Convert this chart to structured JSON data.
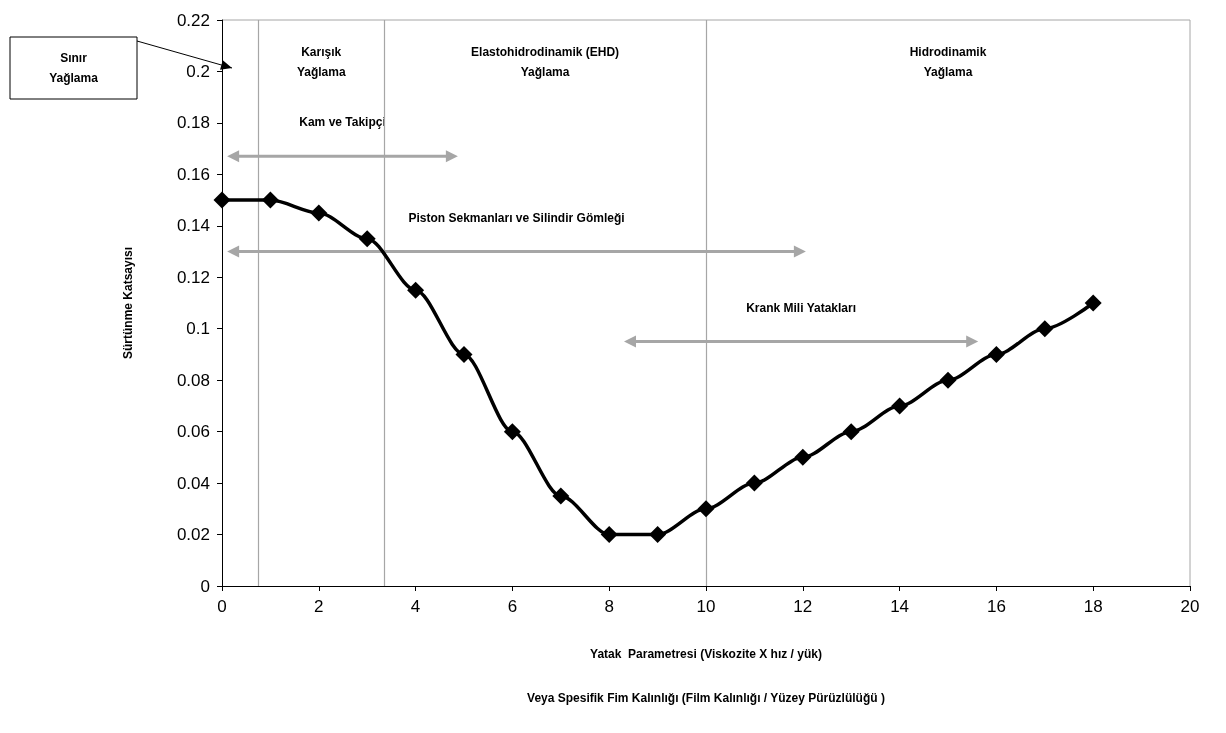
{
  "chart_data": {
    "type": "line",
    "xlabel": "Yatak  Parametresi (Viskozite X hız / yük)\nVeya Spesifik Fim Kalınlığı (Film Kalınlığı / Yüzey Pürüzlülüğü )",
    "ylabel": "Sürtünme Katsayısı",
    "x": [
      0,
      1,
      2,
      3,
      4,
      5,
      6,
      7,
      8,
      9,
      10,
      11,
      12,
      13,
      14,
      15,
      16,
      17,
      18
    ],
    "series": [
      {
        "color": "#000000",
        "values": [
          0.15,
          0.15,
          0.145,
          0.135,
          0.115,
          0.09,
          0.06,
          0.035,
          0.02,
          0.02,
          0.03,
          0.04,
          0.05,
          0.06,
          0.07,
          0.08,
          0.09,
          0.1,
          0.11
        ]
      },
      {
        "type": "line",
        "name": "Kam ve Takipçi",
        "color": "#a6a6a6",
        "x": [
          0.23,
          4.75
        ],
        "values": [
          0.167,
          0.167
        ],
        "marker": "triangle"
      },
      {
        "type": "line",
        "name": "Piston Sekmanları ve Silindir Gömleği",
        "color": "#a6a6a6",
        "x": [
          0.23,
          11.94
        ],
        "values": [
          0.13,
          0.13
        ],
        "marker": "triangle"
      },
      {
        "type": "line",
        "name": "Krank Mili Yatakları",
        "color": "#a6a6a6",
        "x": [
          8.43,
          15.5
        ],
        "values": [
          0.095,
          0.095
        ],
        "marker": "triangle"
      }
    ],
    "marker": "diamond",
    "line_style": "solid",
    "grid": false,
    "legend": false,
    "xlim": [
      0,
      20
    ],
    "xticks": [
      0,
      2,
      4,
      6,
      8,
      10,
      12,
      14,
      16,
      18,
      20
    ],
    "ylim": [
      0,
      0.22
    ],
    "yticks": [
      0,
      0.02,
      0.04,
      0.06,
      0.08,
      0.1,
      0.12,
      0.14,
      0.16,
      0.18,
      0.2,
      0.22
    ],
    "ref_lines": [
      {
        "axis": "x",
        "value": 0.75,
        "color": "#a6a6a6"
      },
      {
        "axis": "x",
        "value": 3.35,
        "color": "#a6a6a6"
      },
      {
        "axis": "x",
        "value": 10,
        "color": "#a6a6a6"
      }
    ],
    "annotations": [
      "Sınır\nYağlama",
      "Karışık\nYağlama",
      "Elastohidrodinamik (EHD)\nYağlama",
      "Hidrodinamik\nYağlama"
    ]
  }
}
